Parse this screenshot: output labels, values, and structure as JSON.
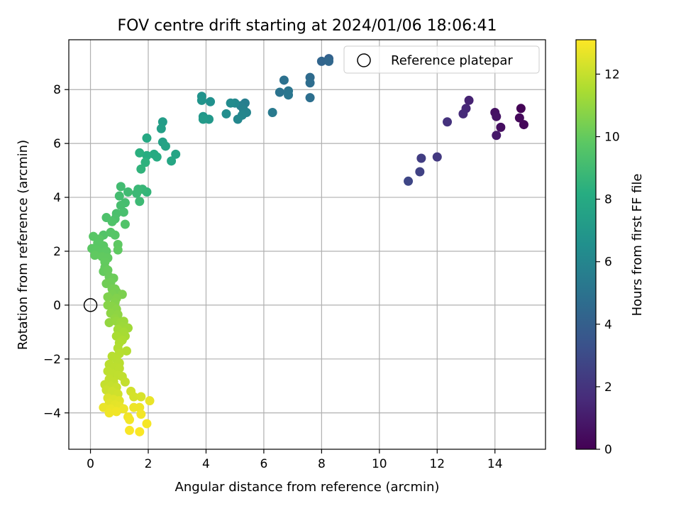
{
  "chart_data": {
    "type": "scatter",
    "title": "FOV centre drift starting at 2024/01/06 18:06:41",
    "xlabel": "Angular distance from reference (arcmin)",
    "ylabel": "Rotation from reference (arcmin)",
    "xlim": [
      -0.75,
      15.75
    ],
    "ylim": [
      -5.35,
      9.85
    ],
    "x_ticks": [
      0,
      2,
      4,
      6,
      8,
      10,
      12,
      14
    ],
    "y_ticks": [
      -4,
      -2,
      0,
      2,
      4,
      6,
      8
    ],
    "x_tick_labels": [
      "0",
      "2",
      "4",
      "6",
      "8",
      "10",
      "12",
      "14"
    ],
    "y_tick_labels": [
      "−4",
      "−2",
      "0",
      "2",
      "4",
      "6",
      "8"
    ],
    "grid": true,
    "legend": {
      "position": "top-right",
      "entries": [
        "Reference platepar"
      ]
    },
    "colorbar": {
      "label": "Hours from first FF file",
      "colormap": "viridis",
      "range": [
        0,
        13.1
      ],
      "ticks": [
        0,
        2,
        4,
        6,
        8,
        10,
        12
      ],
      "tick_labels": [
        "0",
        "2",
        "4",
        "6",
        "8",
        "10",
        "12"
      ]
    },
    "reference_point": {
      "x": 0,
      "y": 0
    },
    "points": [
      {
        "x": 14.9,
        "y": 7.3,
        "t": 0.1
      },
      {
        "x": 15.0,
        "y": 6.7,
        "t": 0.2
      },
      {
        "x": 14.85,
        "y": 6.95,
        "t": 0.3
      },
      {
        "x": 14.2,
        "y": 6.6,
        "t": 0.5
      },
      {
        "x": 14.0,
        "y": 7.15,
        "t": 0.6
      },
      {
        "x": 14.05,
        "y": 7.0,
        "t": 0.7
      },
      {
        "x": 14.05,
        "y": 6.3,
        "t": 0.9
      },
      {
        "x": 13.1,
        "y": 7.6,
        "t": 1.3
      },
      {
        "x": 13.0,
        "y": 7.3,
        "t": 1.5
      },
      {
        "x": 12.9,
        "y": 7.1,
        "t": 1.6
      },
      {
        "x": 12.35,
        "y": 6.8,
        "t": 1.9
      },
      {
        "x": 12.0,
        "y": 5.5,
        "t": 2.2
      },
      {
        "x": 11.45,
        "y": 5.45,
        "t": 2.4
      },
      {
        "x": 11.4,
        "y": 4.95,
        "t": 2.6
      },
      {
        "x": 11.0,
        "y": 4.6,
        "t": 2.8
      },
      {
        "x": 8.25,
        "y": 9.15,
        "t": 4.1
      },
      {
        "x": 8.0,
        "y": 9.05,
        "t": 4.3
      },
      {
        "x": 8.25,
        "y": 9.05,
        "t": 4.4
      },
      {
        "x": 7.6,
        "y": 8.45,
        "t": 4.6
      },
      {
        "x": 7.6,
        "y": 8.25,
        "t": 4.7
      },
      {
        "x": 7.6,
        "y": 7.7,
        "t": 4.8
      },
      {
        "x": 6.7,
        "y": 8.35,
        "t": 4.9
      },
      {
        "x": 6.55,
        "y": 7.9,
        "t": 5.0
      },
      {
        "x": 6.85,
        "y": 7.95,
        "t": 5.1
      },
      {
        "x": 6.85,
        "y": 7.8,
        "t": 5.2
      },
      {
        "x": 6.3,
        "y": 7.15,
        "t": 5.4
      },
      {
        "x": 5.35,
        "y": 7.5,
        "t": 5.6
      },
      {
        "x": 5.2,
        "y": 7.4,
        "t": 5.7
      },
      {
        "x": 5.3,
        "y": 7.25,
        "t": 5.8
      },
      {
        "x": 5.4,
        "y": 7.15,
        "t": 5.9
      },
      {
        "x": 5.25,
        "y": 7.05,
        "t": 6.0
      },
      {
        "x": 5.1,
        "y": 6.9,
        "t": 6.1
      },
      {
        "x": 5.0,
        "y": 7.5,
        "t": 6.2
      },
      {
        "x": 4.85,
        "y": 7.5,
        "t": 6.3
      },
      {
        "x": 4.7,
        "y": 7.1,
        "t": 6.4
      },
      {
        "x": 4.15,
        "y": 7.55,
        "t": 6.6
      },
      {
        "x": 3.85,
        "y": 7.75,
        "t": 6.7
      },
      {
        "x": 3.85,
        "y": 7.6,
        "t": 6.8
      },
      {
        "x": 3.9,
        "y": 7.0,
        "t": 6.9
      },
      {
        "x": 4.1,
        "y": 6.9,
        "t": 7.0
      },
      {
        "x": 3.9,
        "y": 6.9,
        "t": 7.1
      },
      {
        "x": 2.5,
        "y": 6.8,
        "t": 7.3
      },
      {
        "x": 2.45,
        "y": 6.55,
        "t": 7.4
      },
      {
        "x": 2.5,
        "y": 6.05,
        "t": 7.5
      },
      {
        "x": 2.6,
        "y": 5.9,
        "t": 7.6
      },
      {
        "x": 2.95,
        "y": 5.6,
        "t": 7.7
      },
      {
        "x": 2.8,
        "y": 5.35,
        "t": 7.8
      },
      {
        "x": 1.95,
        "y": 6.2,
        "t": 7.9
      },
      {
        "x": 2.2,
        "y": 5.6,
        "t": 8.0
      },
      {
        "x": 2.3,
        "y": 5.5,
        "t": 8.1
      },
      {
        "x": 1.95,
        "y": 5.55,
        "t": 8.2
      },
      {
        "x": 1.7,
        "y": 5.65,
        "t": 8.3
      },
      {
        "x": 1.9,
        "y": 5.3,
        "t": 8.4
      },
      {
        "x": 1.75,
        "y": 5.05,
        "t": 8.5
      },
      {
        "x": 1.95,
        "y": 4.2,
        "t": 8.6
      },
      {
        "x": 1.8,
        "y": 4.3,
        "t": 8.7
      },
      {
        "x": 1.65,
        "y": 4.3,
        "t": 8.8
      },
      {
        "x": 1.6,
        "y": 4.15,
        "t": 8.85
      },
      {
        "x": 1.7,
        "y": 3.85,
        "t": 8.9
      },
      {
        "x": 1.3,
        "y": 4.2,
        "t": 9.0
      },
      {
        "x": 1.05,
        "y": 4.4,
        "t": 9.05
      },
      {
        "x": 1.0,
        "y": 4.05,
        "t": 9.1
      },
      {
        "x": 1.2,
        "y": 3.8,
        "t": 9.15
      },
      {
        "x": 1.05,
        "y": 3.7,
        "t": 9.2
      },
      {
        "x": 1.15,
        "y": 3.45,
        "t": 9.25
      },
      {
        "x": 0.9,
        "y": 3.4,
        "t": 9.3
      },
      {
        "x": 0.85,
        "y": 3.2,
        "t": 9.35
      },
      {
        "x": 0.55,
        "y": 3.25,
        "t": 9.4
      },
      {
        "x": 0.75,
        "y": 3.1,
        "t": 9.45
      },
      {
        "x": 1.2,
        "y": 3.0,
        "t": 9.5
      },
      {
        "x": 0.45,
        "y": 2.6,
        "t": 9.55
      },
      {
        "x": 0.7,
        "y": 2.7,
        "t": 9.6
      },
      {
        "x": 0.85,
        "y": 2.6,
        "t": 9.65
      },
      {
        "x": 0.1,
        "y": 2.55,
        "t": 9.7
      },
      {
        "x": 0.3,
        "y": 2.45,
        "t": 9.72
      },
      {
        "x": 0.25,
        "y": 2.3,
        "t": 9.74
      },
      {
        "x": 0.45,
        "y": 2.2,
        "t": 9.76
      },
      {
        "x": 0.05,
        "y": 2.1,
        "t": 9.78
      },
      {
        "x": 0.2,
        "y": 2.05,
        "t": 9.8
      },
      {
        "x": 0.35,
        "y": 1.95,
        "t": 9.82
      },
      {
        "x": 0.55,
        "y": 2.0,
        "t": 9.84
      },
      {
        "x": 0.95,
        "y": 2.25,
        "t": 9.86
      },
      {
        "x": 0.95,
        "y": 2.05,
        "t": 9.88
      },
      {
        "x": 0.15,
        "y": 1.85,
        "t": 9.9
      },
      {
        "x": 0.4,
        "y": 1.8,
        "t": 9.92
      },
      {
        "x": 0.6,
        "y": 1.75,
        "t": 9.94
      },
      {
        "x": 0.5,
        "y": 1.6,
        "t": 9.96
      },
      {
        "x": 0.5,
        "y": 1.4,
        "t": 9.98
      },
      {
        "x": 0.45,
        "y": 1.25,
        "t": 10.0
      },
      {
        "x": 0.6,
        "y": 1.3,
        "t": 10.05
      },
      {
        "x": 0.65,
        "y": 1.05,
        "t": 10.1
      },
      {
        "x": 0.8,
        "y": 1.0,
        "t": 10.15
      },
      {
        "x": 0.7,
        "y": 0.85,
        "t": 10.2
      },
      {
        "x": 0.55,
        "y": 0.8,
        "t": 10.25
      },
      {
        "x": 0.75,
        "y": 0.6,
        "t": 10.3
      },
      {
        "x": 0.85,
        "y": 0.6,
        "t": 10.35
      },
      {
        "x": 0.9,
        "y": 0.5,
        "t": 10.4
      },
      {
        "x": 0.75,
        "y": 0.4,
        "t": 10.45
      },
      {
        "x": 1.1,
        "y": 0.4,
        "t": 10.5
      },
      {
        "x": 0.6,
        "y": 0.3,
        "t": 10.55
      },
      {
        "x": 0.9,
        "y": 0.25,
        "t": 10.6
      },
      {
        "x": 0.85,
        "y": 0.1,
        "t": 10.65
      },
      {
        "x": 0.6,
        "y": 0.0,
        "t": 10.7
      },
      {
        "x": 0.75,
        "y": -0.05,
        "t": 10.75
      },
      {
        "x": 0.9,
        "y": -0.15,
        "t": 10.8
      },
      {
        "x": 0.7,
        "y": -0.3,
        "t": 10.85
      },
      {
        "x": 0.95,
        "y": -0.35,
        "t": 10.9
      },
      {
        "x": 0.85,
        "y": -0.5,
        "t": 10.95
      },
      {
        "x": 0.65,
        "y": -0.65,
        "t": 11.0
      },
      {
        "x": 0.9,
        "y": -0.6,
        "t": 11.05
      },
      {
        "x": 1.05,
        "y": -0.65,
        "t": 11.1
      },
      {
        "x": 1.15,
        "y": -0.6,
        "t": 11.15
      },
      {
        "x": 1.1,
        "y": -0.8,
        "t": 11.2
      },
      {
        "x": 1.3,
        "y": -0.85,
        "t": 11.25
      },
      {
        "x": 0.95,
        "y": -0.9,
        "t": 11.3
      },
      {
        "x": 1.15,
        "y": -1.0,
        "t": 11.35
      },
      {
        "x": 1.2,
        "y": -1.15,
        "t": 11.4
      },
      {
        "x": 0.9,
        "y": -1.15,
        "t": 11.45
      },
      {
        "x": 1.1,
        "y": -1.3,
        "t": 11.5
      },
      {
        "x": 1.0,
        "y": -1.4,
        "t": 11.55
      },
      {
        "x": 0.95,
        "y": -1.6,
        "t": 11.6
      },
      {
        "x": 1.25,
        "y": -1.7,
        "t": 11.65
      },
      {
        "x": 1.0,
        "y": -1.8,
        "t": 11.7
      },
      {
        "x": 0.75,
        "y": -1.9,
        "t": 11.72
      },
      {
        "x": 0.9,
        "y": -2.0,
        "t": 11.74
      },
      {
        "x": 1.0,
        "y": -2.15,
        "t": 11.76
      },
      {
        "x": 0.65,
        "y": -2.2,
        "t": 11.78
      },
      {
        "x": 0.85,
        "y": -2.3,
        "t": 11.8
      },
      {
        "x": 1.0,
        "y": -2.35,
        "t": 11.82
      },
      {
        "x": 0.6,
        "y": -2.45,
        "t": 11.84
      },
      {
        "x": 0.75,
        "y": -2.55,
        "t": 11.86
      },
      {
        "x": 0.95,
        "y": -2.6,
        "t": 11.88
      },
      {
        "x": 1.1,
        "y": -2.65,
        "t": 11.9
      },
      {
        "x": 0.65,
        "y": -2.75,
        "t": 11.92
      },
      {
        "x": 0.8,
        "y": -2.85,
        "t": 11.94
      },
      {
        "x": 1.2,
        "y": -2.85,
        "t": 11.96
      },
      {
        "x": 0.5,
        "y": -2.95,
        "t": 11.98
      },
      {
        "x": 0.7,
        "y": -3.0,
        "t": 12.0
      },
      {
        "x": 0.9,
        "y": -3.05,
        "t": 12.05
      },
      {
        "x": 0.55,
        "y": -3.15,
        "t": 12.1
      },
      {
        "x": 0.75,
        "y": -3.2,
        "t": 12.15
      },
      {
        "x": 0.95,
        "y": -3.3,
        "t": 12.2
      },
      {
        "x": 1.4,
        "y": -3.2,
        "t": 12.25
      },
      {
        "x": 1.5,
        "y": -3.4,
        "t": 12.3
      },
      {
        "x": 1.75,
        "y": -3.4,
        "t": 12.35
      },
      {
        "x": 0.6,
        "y": -3.45,
        "t": 12.4
      },
      {
        "x": 0.8,
        "y": -3.5,
        "t": 12.45
      },
      {
        "x": 1.0,
        "y": -3.55,
        "t": 12.5
      },
      {
        "x": 0.65,
        "y": -3.65,
        "t": 12.55
      },
      {
        "x": 0.85,
        "y": -3.7,
        "t": 12.6
      },
      {
        "x": 1.0,
        "y": -3.75,
        "t": 12.65
      },
      {
        "x": 2.05,
        "y": -3.55,
        "t": 12.7
      },
      {
        "x": 0.45,
        "y": -3.8,
        "t": 12.72
      },
      {
        "x": 0.7,
        "y": -3.85,
        "t": 12.74
      },
      {
        "x": 1.15,
        "y": -3.85,
        "t": 12.76
      },
      {
        "x": 1.5,
        "y": -3.8,
        "t": 12.78
      },
      {
        "x": 1.7,
        "y": -3.8,
        "t": 12.8
      },
      {
        "x": 0.65,
        "y": -4.0,
        "t": 12.82
      },
      {
        "x": 0.9,
        "y": -3.95,
        "t": 12.84
      },
      {
        "x": 1.3,
        "y": -4.15,
        "t": 12.86
      },
      {
        "x": 1.35,
        "y": -4.25,
        "t": 12.88
      },
      {
        "x": 1.75,
        "y": -4.05,
        "t": 12.9
      },
      {
        "x": 1.95,
        "y": -4.4,
        "t": 12.95
      },
      {
        "x": 1.35,
        "y": -4.65,
        "t": 13.0
      },
      {
        "x": 1.7,
        "y": -4.7,
        "t": 13.05
      }
    ]
  }
}
